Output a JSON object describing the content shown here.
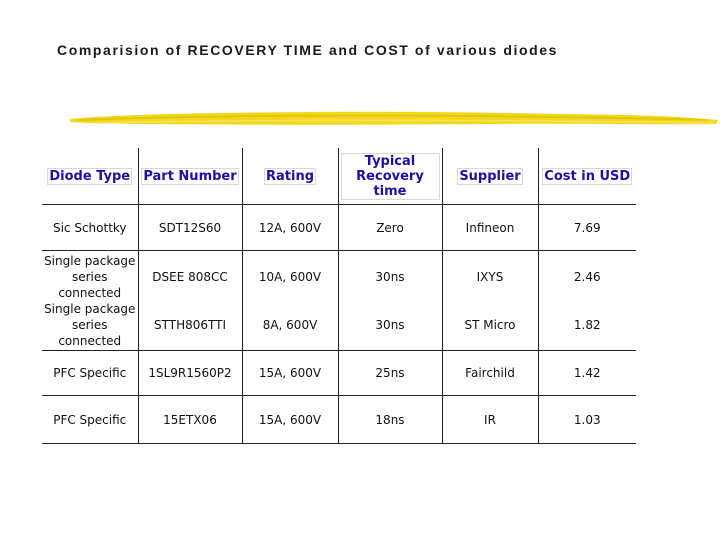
{
  "title": "Comparision of RECOVERY TIME and COST of various diodes",
  "accent_color": "#f2d81d",
  "header_color": "#1c10a6",
  "columns": [
    "Diode Type",
    "Part Number",
    "Rating",
    "Typical Recovery time",
    "Supplier",
    "Cost in USD"
  ],
  "rows": [
    {
      "type": [
        "Sic Schottky"
      ],
      "part": "SDT12S60",
      "rating": "12A, 600V",
      "recovery": "Zero",
      "supplier": "Infineon",
      "cost": "7.69"
    },
    {
      "type": [
        "Single package series connected",
        "Single package series connected"
      ],
      "part": "DSEE 808CC",
      "part2": "STTH806TTI",
      "rating": "10A, 600V",
      "rating2": "8A, 600V",
      "recovery": "30ns",
      "recovery2": "30ns",
      "supplier": "IXYS",
      "supplier2": "ST Micro",
      "cost": "2.46",
      "cost2": "1.82"
    },
    {
      "type": [
        "PFC Specific"
      ],
      "part": "1SL9R1560P2",
      "rating": "15A, 600V",
      "recovery": "25ns",
      "supplier": "Fairchild",
      "cost": "1.42"
    },
    {
      "type": [
        "PFC Specific"
      ],
      "part": "15ETX06",
      "rating": "15A, 600V",
      "recovery": "18ns",
      "supplier": "IR",
      "cost": "1.03"
    }
  ]
}
